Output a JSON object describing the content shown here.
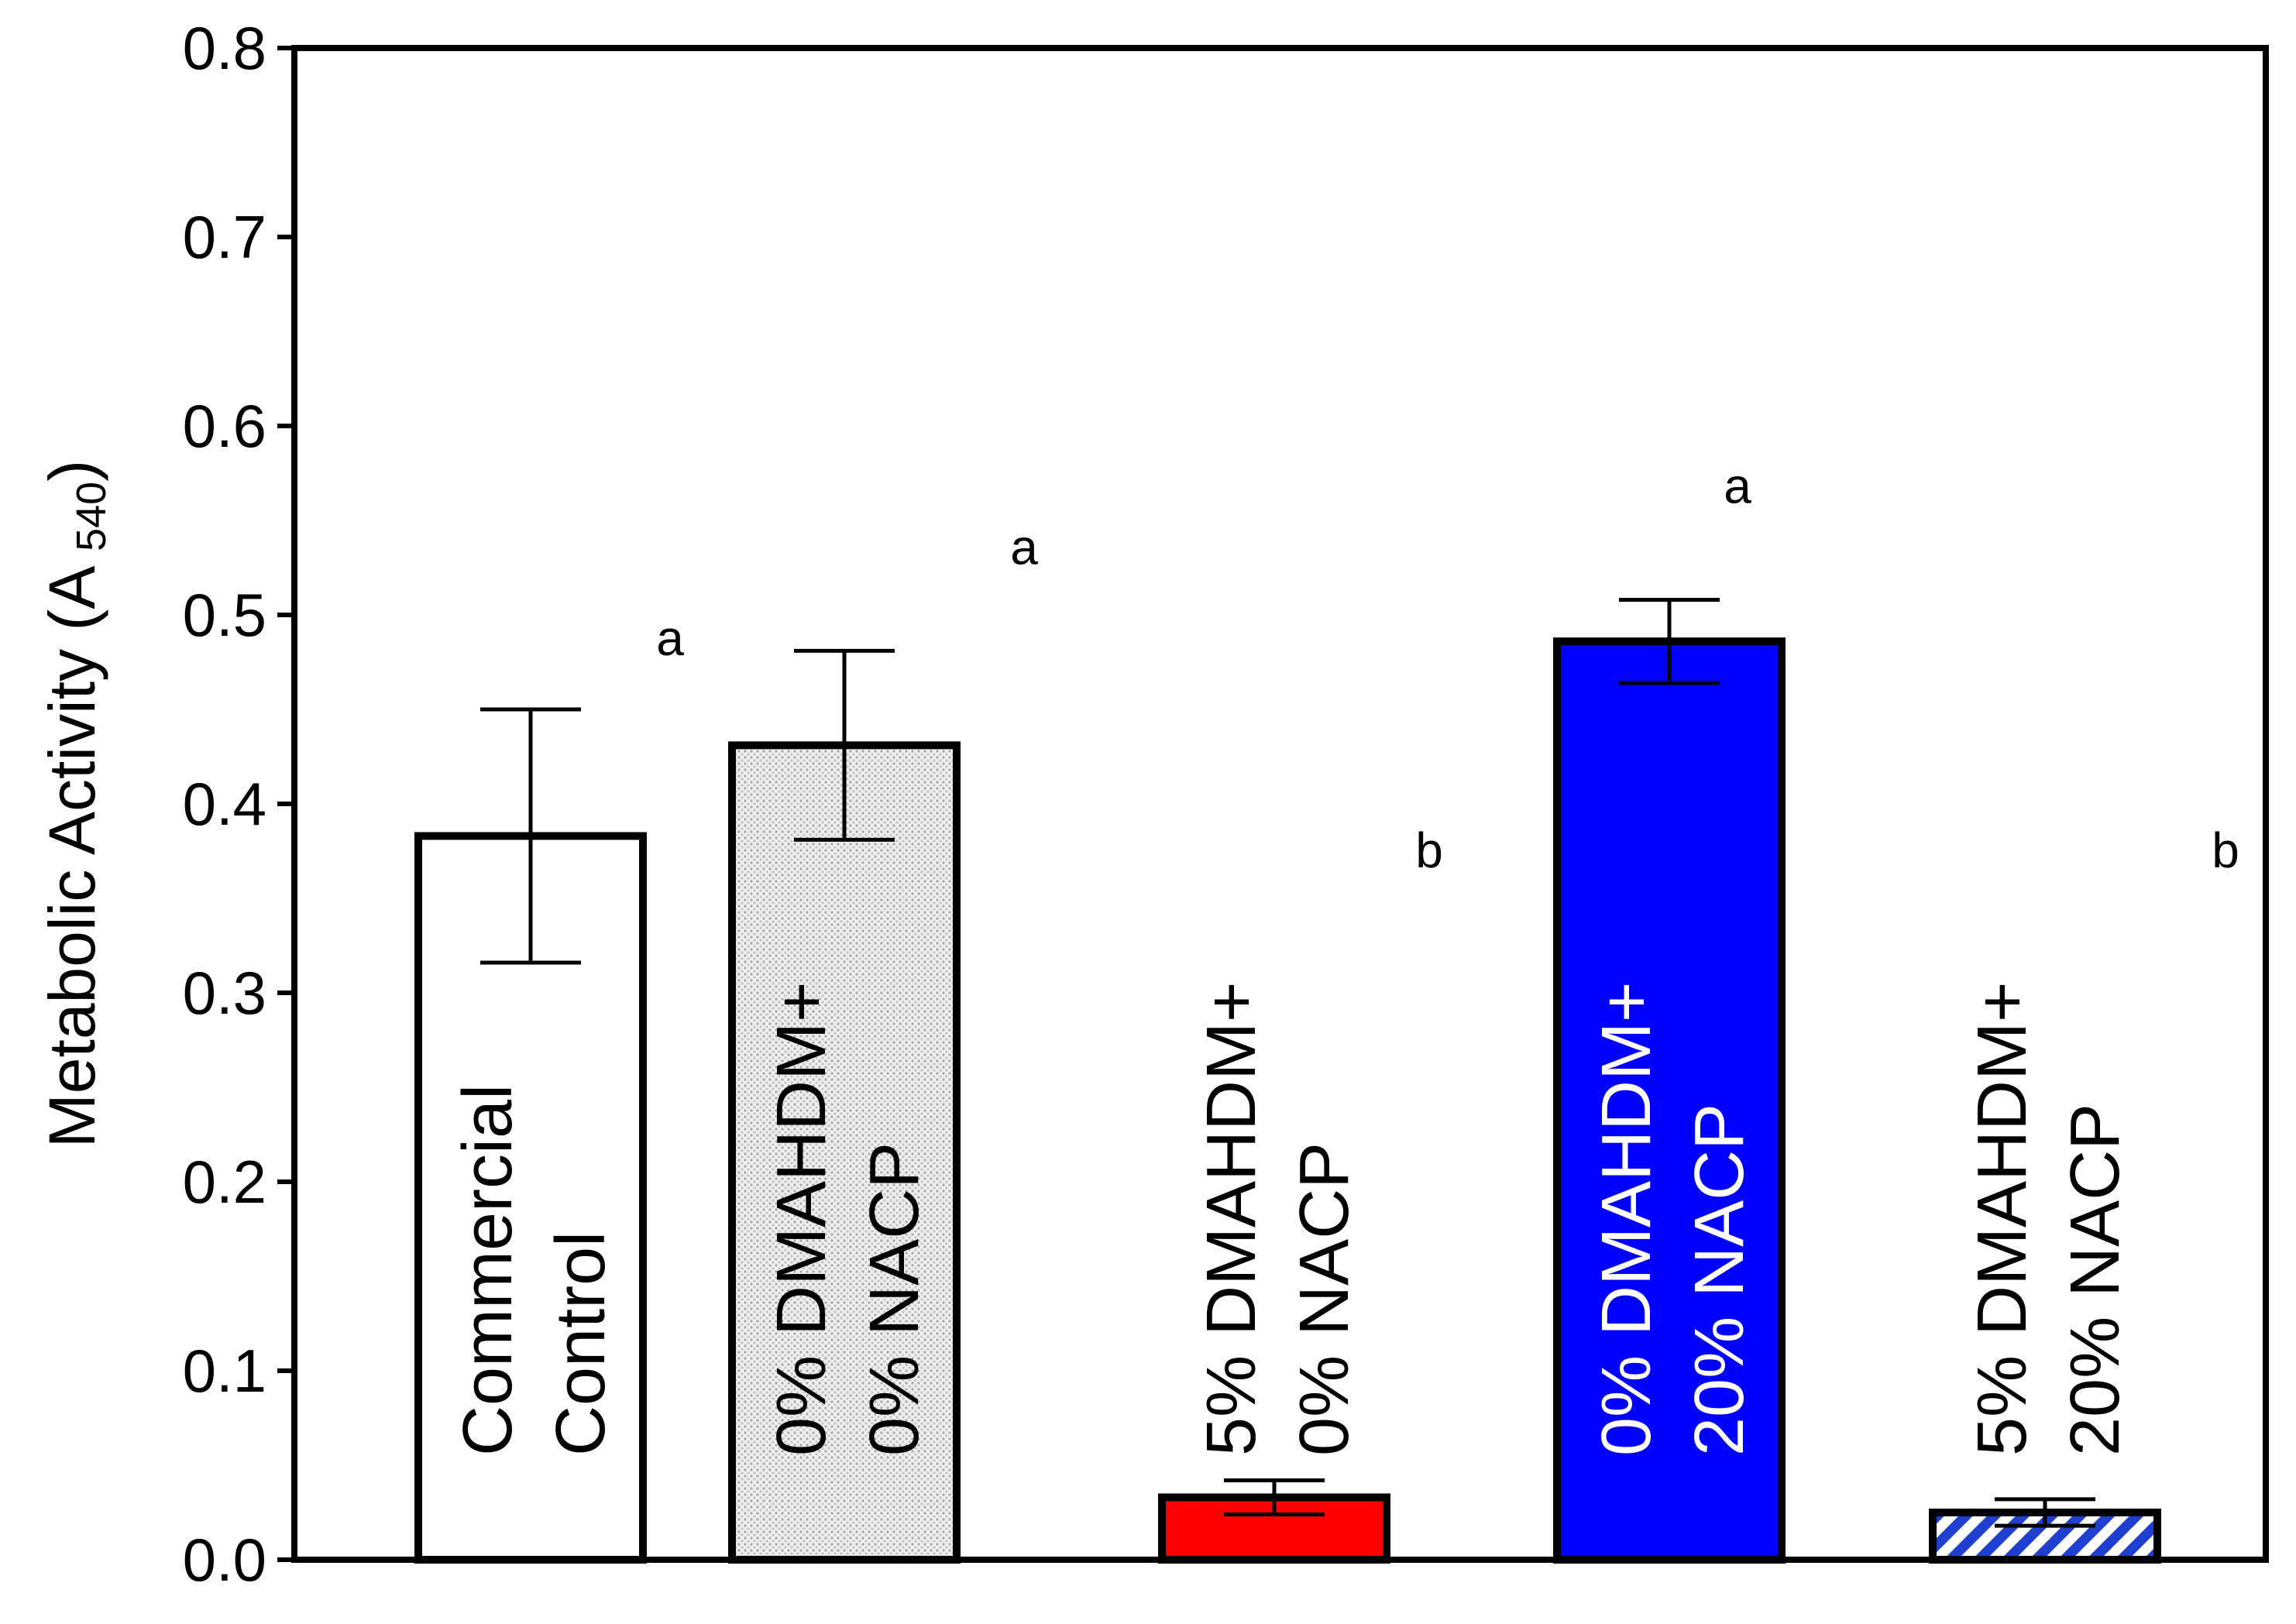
{
  "chart_data": {
    "type": "bar",
    "title": "",
    "xlabel": "",
    "ylabel": "Metabolic Activity (A",
    "ylabel_subscript": "540",
    "ylabel_close": ")",
    "ylim": [
      0.0,
      0.8
    ],
    "yticks": [
      "0.0",
      "0.1",
      "0.2",
      "0.3",
      "0.4",
      "0.5",
      "0.6",
      "0.7",
      "0.8"
    ],
    "grid": false,
    "legend": "none",
    "categories": [
      [
        "Commercial",
        "Control"
      ],
      [
        "0% DMAHDM+",
        "0% NACP"
      ],
      [
        "5% DMAHDM+",
        "0% NACP"
      ],
      [
        "0% DMAHDM+",
        "20% NACP"
      ],
      [
        "5% DMAHDM+",
        "20% NACP"
      ]
    ],
    "values": [
      0.383,
      0.431,
      0.033,
      0.486,
      0.025
    ],
    "errors": [
      0.067,
      0.05,
      0.009,
      0.022,
      0.007
    ],
    "significance": [
      "a",
      "a",
      "b",
      "a",
      "b"
    ],
    "fills": [
      "white",
      "dotted-gray",
      "red",
      "blue",
      "blue-hatched"
    ],
    "colors": {
      "red": "#ff0000",
      "blue": "#0000ff",
      "hatch": "#1f3fd0",
      "dots": "#b8b8b8",
      "axis": "#000000",
      "blue_bar_text": "#ffffff"
    }
  }
}
